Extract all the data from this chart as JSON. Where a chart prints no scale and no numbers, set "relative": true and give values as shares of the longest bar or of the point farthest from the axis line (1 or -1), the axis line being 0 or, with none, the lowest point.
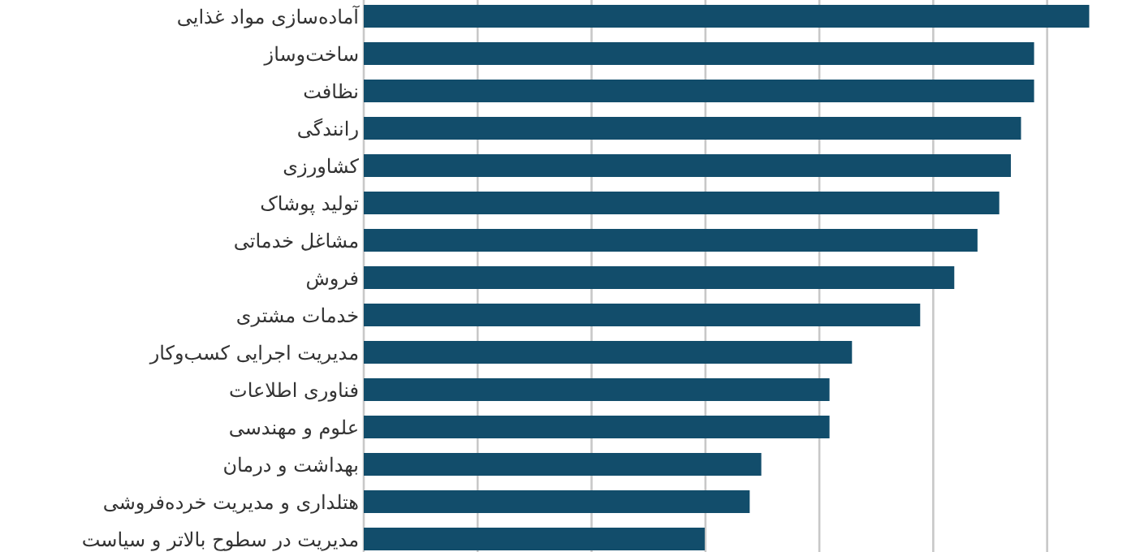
{
  "chart_data": {
    "type": "bar",
    "orientation": "horizontal",
    "relative": true,
    "grid": "x",
    "color": "#124d6b",
    "categories": [
      "آماده‌سازی مواد غذایی",
      "ساخت‌وساز",
      "نظافت",
      "رانندگی",
      "کشاورزی",
      "تولید پوشاک",
      "مشاغل خدماتی",
      "فروش",
      "خدمات مشتری",
      "مدیریت اجرایی کسب‌وکار",
      "فناوری اطلاعات",
      "علوم و مهندسی",
      "بهداشت و درمان",
      "هتلداری و مدیریت خرده‌فروشی",
      "مدیریت در سطوح بالاتر و سیاست"
    ],
    "values": [
      1,
      0.924,
      0.924,
      0.906,
      0.892,
      0.876,
      0.846,
      0.814,
      0.767,
      0.673,
      0.642,
      0.642,
      0.548,
      0.532,
      0.47
    ]
  }
}
